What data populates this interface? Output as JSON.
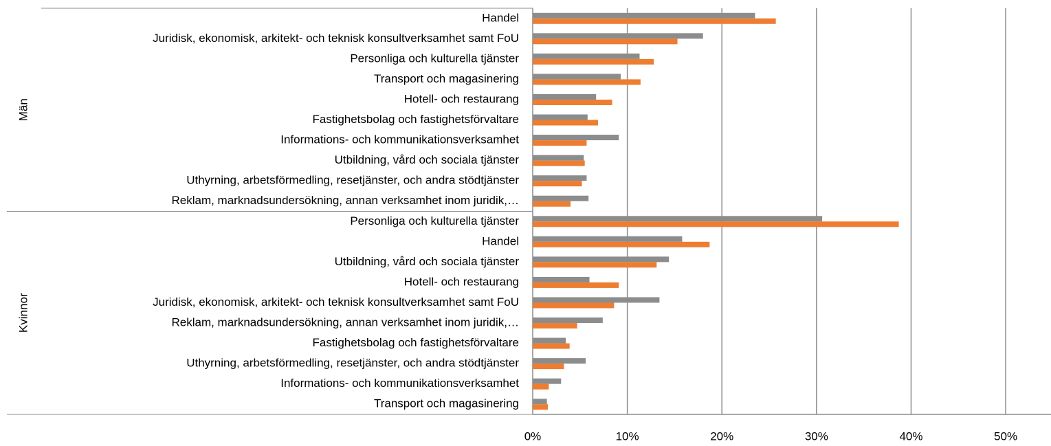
{
  "chart_data": {
    "type": "grouped-hbar",
    "groups": [
      "Män",
      "Kvinnor"
    ],
    "categories": [
      "Handel",
      "Juridisk, ekonomisk, arkitekt- och teknisk konsultverksamhet samt FoU",
      "Personliga och kulturella tjänster",
      "Transport och magasinering",
      "Hotell- och restaurang",
      "Fastighetsbolag och fastighetsförvaltare",
      "Informations- och kommunikationsverksamhet",
      "Utbildning, vård och sociala tjänster",
      "Uthyrning, arbetsförmedling, resetjänster, och andra stödtjänster",
      "Reklam, marknadsundersökning, annan verksamhet inom juridik,…",
      "Personliga och kulturella tjänster",
      "Handel",
      "Utbildning, vård och sociala tjänster",
      "Hotell- och restaurang",
      "Juridisk, ekonomisk, arkitekt- och teknisk konsultverksamhet samt FoU",
      "Reklam, marknadsundersökning, annan verksamhet inom juridik,…",
      "Fastighetsbolag och fastighetsförvaltare",
      "Uthyrning, arbetsförmedling, resetjänster, och andra stödtjänster",
      "Informations- och kommunikationsverksamhet",
      "Transport och magasinering"
    ],
    "series": [
      {
        "color": "#8c8c8c",
        "values": [
          23.5,
          18.0,
          11.3,
          9.3,
          6.7,
          5.8,
          9.1,
          5.4,
          5.7,
          5.9,
          30.6,
          15.8,
          14.4,
          6.0,
          13.4,
          7.4,
          3.5,
          5.6,
          3.0,
          1.5
        ]
      },
      {
        "color": "#ed7d31",
        "values": [
          25.7,
          15.3,
          12.8,
          11.4,
          8.4,
          6.9,
          5.7,
          5.5,
          5.2,
          4.0,
          38.7,
          18.7,
          13.1,
          9.1,
          8.6,
          4.7,
          3.9,
          3.3,
          1.7,
          1.6
        ]
      }
    ],
    "xlim": [
      0,
      54.5
    ],
    "xticks": [
      {
        "value": 0,
        "label": "0%"
      },
      {
        "value": 10,
        "label": "10%"
      },
      {
        "value": 20,
        "label": "20%"
      },
      {
        "value": 30,
        "label": "30%"
      },
      {
        "value": 40,
        "label": "40%"
      },
      {
        "value": 50,
        "label": "50%"
      }
    ],
    "grid": true
  }
}
